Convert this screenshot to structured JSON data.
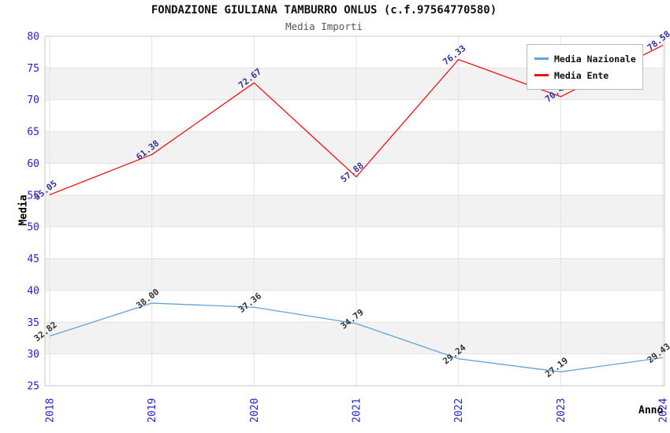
{
  "chart_data": {
    "type": "line",
    "title": "FONDAZIONE GIULIANA TAMBURRO ONLUS (c.f.97564770580)",
    "subtitle": "Media Importi",
    "xlabel": "Anno",
    "ylabel": "Media",
    "categories": [
      "2018",
      "2019",
      "2020",
      "2021",
      "2022",
      "2023",
      "2024"
    ],
    "ylim": [
      25,
      80
    ],
    "ytick_step": 5,
    "grid": true,
    "legend_position": "top-right",
    "data_label_format": "two-decimals",
    "series": [
      {
        "name": "Media Nazionale",
        "color": "#63a2d8",
        "label_color": "#333333",
        "values": [
          32.82,
          38.0,
          37.36,
          34.79,
          29.24,
          27.19,
          29.43
        ]
      },
      {
        "name": "Media Ente",
        "color": "#ee1111",
        "label_color": "#333399",
        "values": [
          55.05,
          61.38,
          72.67,
          57.88,
          76.33,
          70.49,
          78.58
        ]
      }
    ],
    "colors": {
      "tick_label": "#2222cc",
      "axis_title": "#000000",
      "band": "#f2f2f2",
      "gridline": "#e3e3e3",
      "plot_border": "#c9c9c9",
      "title": "#111111",
      "subtitle": "#555555",
      "legend_border": "#b9b9b9",
      "background": "#ffffff"
    }
  }
}
